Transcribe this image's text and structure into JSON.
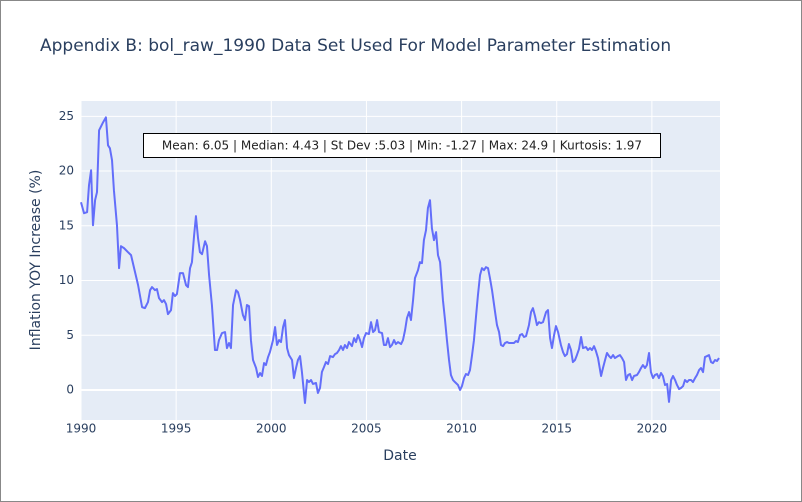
{
  "chart_data": {
    "type": "line",
    "title": "Appendix B: bol_raw_1990 Data Set Used For Model Parameter Estimation",
    "x_label": "Date",
    "y_label": "Inflation YOY Increase (%)",
    "annotation": "Mean: 6.05 | Median: 4.43 | St Dev :5.03 | Min: -1.27 | Max: 24.9 | Kurtosis: 1.97",
    "color": "#636efa",
    "grid": true,
    "xlim": [
      1990,
      2023.58
    ],
    "ylim": [
      -2.74,
      26.4
    ],
    "xticks": [
      1990,
      1995,
      2000,
      2005,
      2010,
      2015,
      2020
    ],
    "yticks": [
      0,
      5,
      10,
      15,
      20,
      25
    ],
    "x": [
      1990.0,
      1990.16,
      1990.32,
      1990.42,
      1990.53,
      1990.63,
      1990.74,
      1990.84,
      1990.95,
      1991.16,
      1991.31,
      1991.42,
      1991.52,
      1991.63,
      1991.73,
      1991.89,
      1992.0,
      1992.1,
      1992.26,
      1992.47,
      1992.63,
      1992.79,
      1993.0,
      1993.21,
      1993.36,
      1993.52,
      1993.63,
      1993.73,
      1993.89,
      1993.99,
      1994.1,
      1994.26,
      1994.36,
      1994.47,
      1994.57,
      1994.73,
      1994.83,
      1994.94,
      1995.04,
      1995.2,
      1995.36,
      1995.52,
      1995.62,
      1995.73,
      1995.83,
      1995.94,
      1996.04,
      1996.15,
      1996.25,
      1996.36,
      1996.52,
      1996.62,
      1996.73,
      1996.88,
      1997.04,
      1997.15,
      1997.25,
      1997.41,
      1997.57,
      1997.67,
      1997.78,
      1997.88,
      1997.99,
      1998.15,
      1998.25,
      1998.36,
      1998.51,
      1998.62,
      1998.72,
      1998.83,
      1998.93,
      1999.04,
      1999.2,
      1999.3,
      1999.41,
      1999.51,
      1999.62,
      1999.72,
      1999.83,
      1999.93,
      2000.09,
      2000.2,
      2000.3,
      2000.41,
      2000.51,
      2000.62,
      2000.72,
      2000.83,
      2000.93,
      2001.09,
      2001.19,
      2001.3,
      2001.4,
      2001.51,
      2001.61,
      2001.77,
      2001.88,
      2001.98,
      2002.09,
      2002.19,
      2002.35,
      2002.45,
      2002.56,
      2002.66,
      2002.77,
      2002.87,
      2002.98,
      2003.09,
      2003.24,
      2003.35,
      2003.45,
      2003.56,
      2003.66,
      2003.77,
      2003.87,
      2003.98,
      2004.08,
      2004.24,
      2004.35,
      2004.45,
      2004.56,
      2004.66,
      2004.77,
      2004.87,
      2004.98,
      2005.13,
      2005.24,
      2005.35,
      2005.45,
      2005.56,
      2005.66,
      2005.82,
      2005.92,
      2006.03,
      2006.13,
      2006.24,
      2006.34,
      2006.45,
      2006.55,
      2006.66,
      2006.82,
      2006.92,
      2007.03,
      2007.13,
      2007.24,
      2007.34,
      2007.45,
      2007.55,
      2007.71,
      2007.81,
      2007.92,
      2008.02,
      2008.13,
      2008.23,
      2008.34,
      2008.44,
      2008.55,
      2008.66,
      2008.76,
      2008.87,
      2009.02,
      2009.13,
      2009.23,
      2009.34,
      2009.44,
      2009.55,
      2009.65,
      2009.81,
      2009.92,
      2010.02,
      2010.13,
      2010.23,
      2010.34,
      2010.44,
      2010.55,
      2010.65,
      2010.76,
      2010.86,
      2010.97,
      2011.07,
      2011.18,
      2011.28,
      2011.39,
      2011.49,
      2011.6,
      2011.76,
      2011.86,
      2011.97,
      2012.07,
      2012.18,
      2012.28,
      2012.39,
      2012.49,
      2012.6,
      2012.75,
      2012.86,
      2012.96,
      2013.07,
      2013.18,
      2013.28,
      2013.39,
      2013.54,
      2013.65,
      2013.75,
      2013.86,
      2013.96,
      2014.07,
      2014.17,
      2014.28,
      2014.44,
      2014.54,
      2014.65,
      2014.75,
      2014.86,
      2014.96,
      2015.07,
      2015.22,
      2015.33,
      2015.43,
      2015.54,
      2015.64,
      2015.75,
      2015.85,
      2015.96,
      2016.06,
      2016.17,
      2016.28,
      2016.38,
      2016.54,
      2016.64,
      2016.75,
      2016.85,
      2016.96,
      2017.06,
      2017.17,
      2017.33,
      2017.43,
      2017.54,
      2017.64,
      2017.75,
      2017.85,
      2017.96,
      2018.06,
      2018.22,
      2018.32,
      2018.43,
      2018.54,
      2018.64,
      2018.75,
      2018.85,
      2018.96,
      2019.06,
      2019.22,
      2019.32,
      2019.43,
      2019.53,
      2019.64,
      2019.74,
      2019.85,
      2019.95,
      2020.06,
      2020.16,
      2020.27,
      2020.37,
      2020.48,
      2020.58,
      2020.69,
      2020.8,
      2020.9,
      2021.01,
      2021.11,
      2021.22,
      2021.32,
      2021.43,
      2021.53,
      2021.64,
      2021.74,
      2021.85,
      2021.95,
      2022.06,
      2022.16,
      2022.27,
      2022.37,
      2022.48,
      2022.58,
      2022.69,
      2022.79,
      2022.9,
      2023.0,
      2023.11,
      2023.21,
      2023.32,
      2023.42,
      2023.53
    ],
    "values": [
      17.15,
      16.15,
      16.24,
      18.7,
      20.07,
      15.05,
      17.34,
      18.07,
      23.72,
      24.45,
      24.91,
      22.35,
      22.08,
      20.99,
      18.25,
      15.05,
      11.13,
      13.14,
      12.96,
      12.59,
      12.32,
      11.13,
      9.58,
      7.57,
      7.48,
      8.03,
      9.12,
      9.4,
      9.12,
      9.22,
      8.39,
      8.03,
      8.21,
      7.85,
      6.93,
      7.3,
      8.85,
      8.58,
      8.76,
      10.68,
      10.68,
      9.58,
      9.4,
      11.13,
      11.68,
      14.05,
      15.88,
      13.87,
      12.59,
      12.41,
      13.59,
      13.14,
      10.49,
      7.76,
      3.65,
      3.65,
      4.56,
      5.2,
      5.29,
      3.83,
      4.29,
      3.83,
      7.76,
      9.12,
      8.94,
      8.21,
      6.84,
      6.39,
      7.76,
      7.66,
      4.56,
      2.74,
      2.01,
      1.19,
      1.55,
      1.28,
      2.46,
      2.28,
      3.01,
      3.47,
      4.56,
      5.75,
      4.11,
      4.56,
      4.38,
      5.75,
      6.39,
      3.83,
      3.19,
      2.74,
      1.09,
      2.01,
      2.74,
      3.1,
      1.64,
      -1.19,
      0.91,
      0.73,
      0.91,
      0.55,
      0.64,
      -0.27,
      0.18,
      1.64,
      2.1,
      2.55,
      2.37,
      3.1,
      3.01,
      3.28,
      3.38,
      3.65,
      4.01,
      3.65,
      4.11,
      3.83,
      4.38,
      4.01,
      4.74,
      4.38,
      5.02,
      4.56,
      3.92,
      4.74,
      5.2,
      5.11,
      6.2,
      5.29,
      5.47,
      6.39,
      5.29,
      5.2,
      4.11,
      4.11,
      4.74,
      3.92,
      4.11,
      4.56,
      4.2,
      4.38,
      4.2,
      4.56,
      5.47,
      6.57,
      7.12,
      6.39,
      8.21,
      10.22,
      10.95,
      11.68,
      11.59,
      13.69,
      14.6,
      16.61,
      17.34,
      14.78,
      13.69,
      14.42,
      12.32,
      11.68,
      8.21,
      6.39,
      4.56,
      2.74,
      1.37,
      0.91,
      0.73,
      0.46,
      0.0,
      0.36,
      1.09,
      1.46,
      1.37,
      1.82,
      3.19,
      4.56,
      6.75,
      8.67,
      10.49,
      11.13,
      10.95,
      11.22,
      11.13,
      10.22,
      9.12,
      7.12,
      5.93,
      5.29,
      4.11,
      4.01,
      4.29,
      4.38,
      4.29,
      4.29,
      4.29,
      4.47,
      4.38,
      5.02,
      5.11,
      4.84,
      4.93,
      5.93,
      7.12,
      7.48,
      6.75,
      5.93,
      6.2,
      6.11,
      6.2,
      7.12,
      7.3,
      4.74,
      3.83,
      5.02,
      5.84,
      5.29,
      4.11,
      3.47,
      3.1,
      3.28,
      4.2,
      3.65,
      2.55,
      2.74,
      3.19,
      3.74,
      4.84,
      3.83,
      3.92,
      3.65,
      3.83,
      3.65,
      4.01,
      3.56,
      2.92,
      1.28,
      2.01,
      2.74,
      3.38,
      3.1,
      2.92,
      3.19,
      2.92,
      3.1,
      3.19,
      2.92,
      2.55,
      0.91,
      1.37,
      1.46,
      0.91,
      1.28,
      1.37,
      1.64,
      2.01,
      2.28,
      2.01,
      2.28,
      3.38,
      1.64,
      1.09,
      1.37,
      1.46,
      1.09,
      1.55,
      1.28,
      0.46,
      0.55,
      -1.09,
      0.91,
      1.28,
      0.91,
      0.46,
      0.09,
      0.18,
      0.36,
      0.91,
      0.73,
      0.91,
      0.91,
      0.73,
      1.09,
      1.37,
      1.82,
      2.01,
      1.64,
      3.01,
      3.1,
      3.19,
      2.55,
      2.46,
      2.74,
      2.65,
      2.92
    ]
  }
}
